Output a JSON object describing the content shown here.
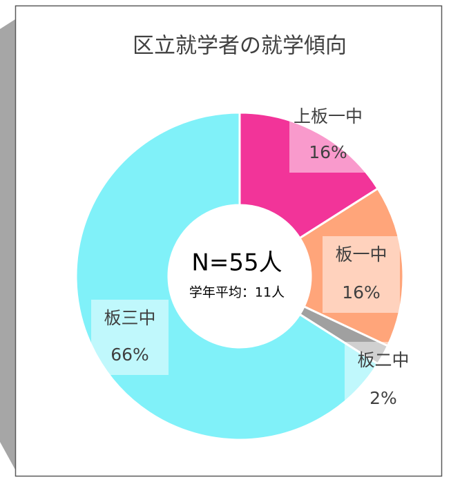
{
  "chart_data": {
    "type": "donut",
    "title": "区立就学者の就学傾向",
    "center_label": "N=55人",
    "center_sublabel": "学年平均：11人",
    "categories": [
      "上板一中",
      "板一中",
      "板二中",
      "板三中"
    ],
    "values": [
      16,
      16,
      2,
      66
    ],
    "value_labels": [
      "16%",
      "16%",
      "2%",
      "66%"
    ],
    "colors": [
      "#f23499",
      "#ffa57a",
      "#a0a0a0",
      "#80f1f9"
    ]
  }
}
